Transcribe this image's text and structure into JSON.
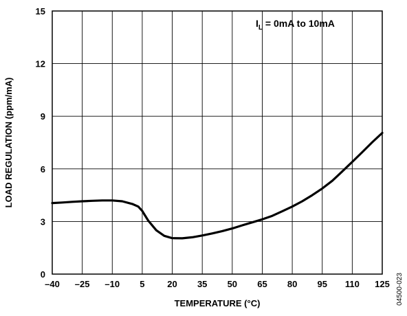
{
  "chart_data": {
    "type": "line",
    "title": "",
    "xlabel": "TEMPERATURE (°C)",
    "ylabel": "LOAD REGULATION (ppm/mA)",
    "xlim": [
      -40,
      125
    ],
    "ylim": [
      0,
      15
    ],
    "x_ticks": [
      -40,
      -25,
      -10,
      5,
      20,
      35,
      50,
      65,
      80,
      95,
      110,
      125
    ],
    "y_ticks": [
      0,
      3,
      6,
      9,
      12,
      15
    ],
    "x_tick_labels": [
      "–40",
      "–25",
      "–10",
      "5",
      "20",
      "35",
      "50",
      "65",
      "80",
      "95",
      "110",
      "125"
    ],
    "y_tick_labels": [
      "0",
      "3",
      "6",
      "9",
      "12",
      "15"
    ],
    "grid": true,
    "annotation": {
      "prefix": "I",
      "subscript": "L",
      "suffix": " = 0mA to 10mA"
    },
    "figure_id": "04500-023",
    "series": [
      {
        "color": "#000000",
        "x": [
          -40,
          -35,
          -30,
          -25,
          -20,
          -15,
          -10,
          -5,
          0,
          3,
          5,
          8,
          12,
          16,
          20,
          25,
          30,
          35,
          40,
          45,
          50,
          55,
          60,
          65,
          70,
          75,
          80,
          85,
          90,
          95,
          100,
          105,
          110,
          115,
          120,
          125
        ],
        "y": [
          4.05,
          4.08,
          4.12,
          4.15,
          4.18,
          4.2,
          4.2,
          4.15,
          4.0,
          3.85,
          3.6,
          3.05,
          2.5,
          2.18,
          2.05,
          2.04,
          2.1,
          2.2,
          2.32,
          2.45,
          2.6,
          2.78,
          2.95,
          3.12,
          3.32,
          3.58,
          3.85,
          4.15,
          4.5,
          4.88,
          5.32,
          5.85,
          6.4,
          6.95,
          7.52,
          8.05
        ]
      }
    ]
  }
}
